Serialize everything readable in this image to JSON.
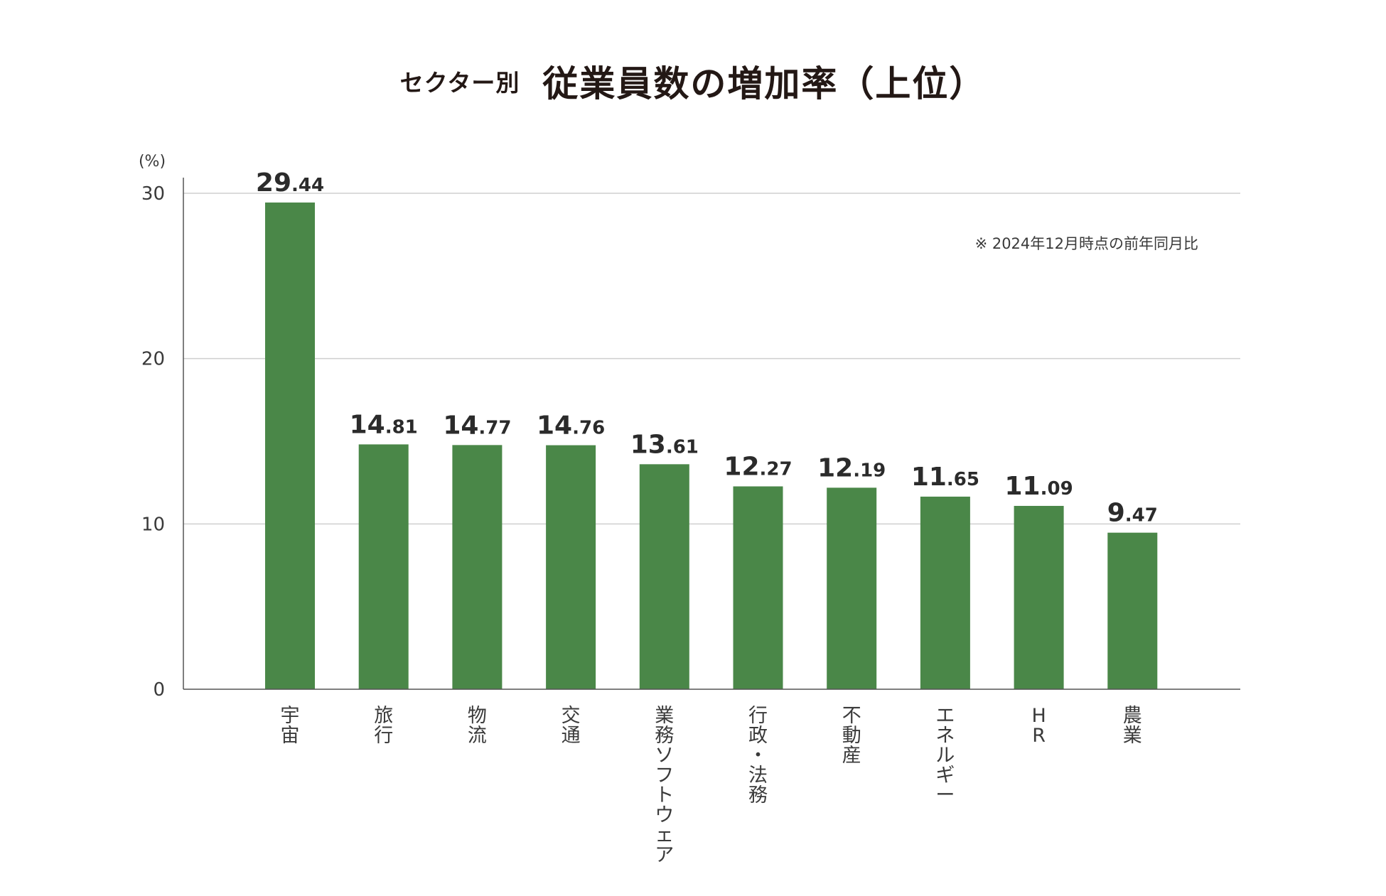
{
  "title": {
    "prefix": "セクター別",
    "main": "従業員数の増加率（上位）"
  },
  "note": "※ 2024年12月時点の前年同月比",
  "colors": {
    "bar": "#4a8748",
    "grid": "#cfcfcf",
    "axis": "#555555",
    "text": "#231815"
  },
  "chart_data": {
    "type": "bar",
    "title": "セクター別 従業員数の増加率（上位）",
    "ylabel": "(%)",
    "xlabel": "",
    "ylim": [
      0,
      30
    ],
    "yticks": [
      0,
      10,
      20,
      30
    ],
    "grid": true,
    "categories": [
      "宇宙",
      "旅行",
      "物流",
      "交通",
      "業務ソフトウェア",
      "行政・法務",
      "不動産",
      "エネルギー",
      "HR",
      "農業"
    ],
    "values": [
      29.44,
      14.81,
      14.77,
      14.76,
      13.61,
      12.27,
      12.19,
      11.65,
      11.09,
      9.47
    ],
    "value_labels": [
      "29.44",
      "14.81",
      "14.77",
      "14.76",
      "13.61",
      "12.27",
      "12.19",
      "11.65",
      "11.09",
      "9.47"
    ]
  }
}
